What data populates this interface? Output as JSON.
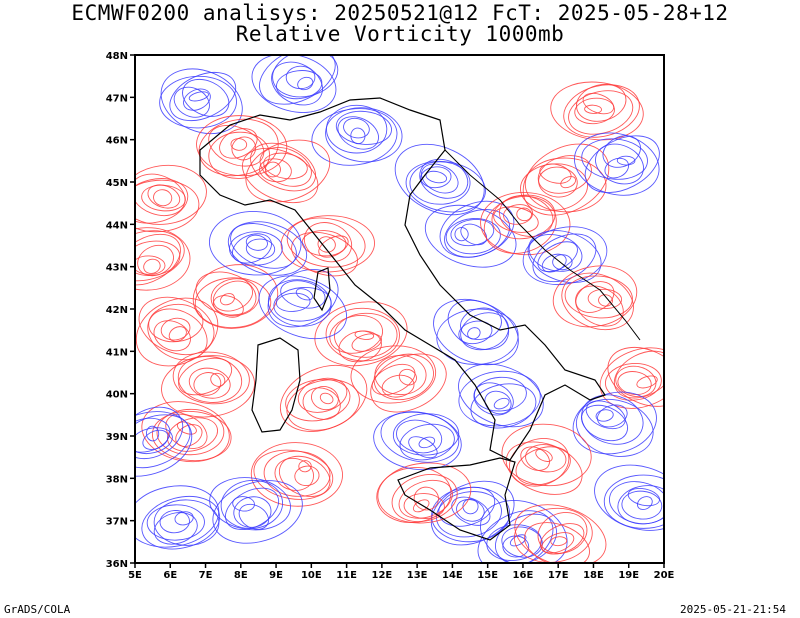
{
  "header": {
    "title_line1": "ECMWF0200 analisys: 20250521@12 FcT: 2025-05-28+12",
    "title_line2": "Relative Vorticity 1000mb"
  },
  "map": {
    "lat_labels": [
      "48N",
      "47N",
      "46N",
      "45N",
      "44N",
      "43N",
      "42N",
      "41N",
      "40N",
      "39N",
      "38N",
      "37N",
      "36N"
    ],
    "lon_labels": [
      "5E",
      "6E",
      "7E",
      "8E",
      "9E",
      "10E",
      "11E",
      "12E",
      "13E",
      "14E",
      "15E",
      "16E",
      "17E",
      "18E",
      "19E",
      "20E"
    ],
    "lat_range": [
      36,
      48
    ],
    "lon_range": [
      5,
      20
    ],
    "colors": {
      "positive_contour": "#ff3b3b",
      "negative_contour": "#3b3bff",
      "coastline": "#000000"
    }
  },
  "footer": {
    "left": "GrADS/COLA",
    "right": "2025-05-21-21:54"
  }
}
